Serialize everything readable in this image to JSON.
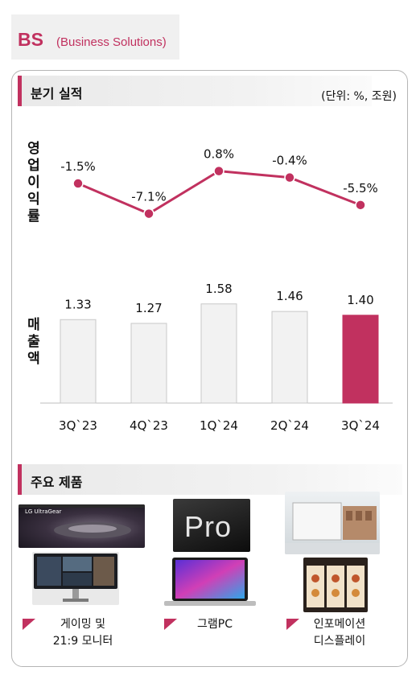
{
  "header": {
    "abbr": "BS",
    "full": "(Business Solutions)"
  },
  "section_quarterly": {
    "title": "분기 실적",
    "unit": "(단위: %, 조원)"
  },
  "labels": {
    "op_margin": "영업이익률",
    "sales": "매출액"
  },
  "chart_data": [
    {
      "type": "line",
      "categories": [
        "3Q`23",
        "4Q`23",
        "1Q`24",
        "2Q`24",
        "3Q`24"
      ],
      "values": [
        -1.5,
        -7.1,
        0.8,
        -0.4,
        -5.5
      ],
      "value_labels": [
        "-1.5%",
        "-7.1%",
        "0.8%",
        "-0.4%",
        "-5.5%"
      ],
      "ylabel": "영업이익률",
      "color": "#c1315f"
    },
    {
      "type": "bar",
      "categories": [
        "3Q`23",
        "4Q`23",
        "1Q`24",
        "2Q`24",
        "3Q`24"
      ],
      "values": [
        1.33,
        1.27,
        1.58,
        1.46,
        1.4
      ],
      "value_labels": [
        "1.33",
        "1.27",
        "1.58",
        "1.46",
        "1.40"
      ],
      "ylabel": "매출액",
      "highlight_index": 4,
      "colors": {
        "bar": "#f2f2f2",
        "bar_border": "#c8c8c8",
        "highlight": "#c1315f"
      }
    }
  ],
  "section_products": {
    "title": "주요 제품",
    "items": [
      {
        "label_line1": "게이밍 및",
        "label_line2": "21:9 모니터",
        "brand_text": "LG UltraGear"
      },
      {
        "label_line1": "그램PC",
        "label_line2": "",
        "brand_text": "Pro"
      },
      {
        "label_line1": "인포메이션",
        "label_line2": "디스플레이",
        "brand_text": ""
      }
    ]
  }
}
